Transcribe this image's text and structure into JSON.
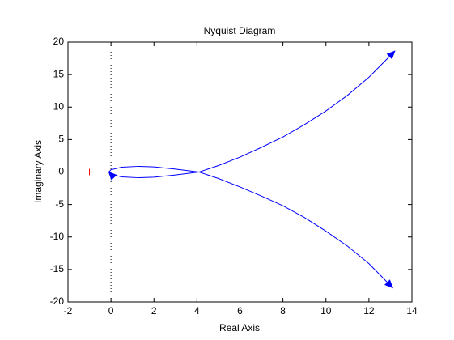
{
  "chart_data": {
    "type": "line",
    "title": "Nyquist Diagram",
    "x_label": "Real Axis",
    "y_label": "Imaginary Axis",
    "x": [
      13.2,
      12,
      11,
      10,
      9,
      8,
      7,
      6,
      5,
      4.1,
      3,
      2,
      1.3,
      0.5,
      0,
      -0.1,
      0,
      0.5,
      1.3,
      2,
      3,
      4.1,
      5,
      6,
      7,
      8,
      9,
      10,
      11,
      12,
      13.1
    ],
    "series": [
      {
        "color": "#0000ff",
        "values": [
          18.6,
          14.6,
          11.8,
          9.4,
          7.3,
          5.4,
          3.8,
          2.3,
          1,
          0,
          -0.45,
          -0.8,
          -0.88,
          -0.75,
          -0.35,
          0,
          0.35,
          0.75,
          0.88,
          0.8,
          0.45,
          0,
          -1,
          -2.3,
          -3.7,
          -5.2,
          -7,
          -9.1,
          -11.4,
          -14.1,
          -17.8
        ]
      }
    ],
    "critical_point": {
      "x": -1,
      "y": 0,
      "color": "#ff0000"
    },
    "zero_lines": true,
    "xlim": [
      -2,
      14
    ],
    "xticks": [
      -2,
      0,
      2,
      4,
      6,
      8,
      10,
      12,
      14
    ],
    "ylim": [
      -20,
      20
    ],
    "yticks": [
      -20,
      -15,
      -10,
      -5,
      0,
      5,
      10,
      15,
      20
    ]
  }
}
